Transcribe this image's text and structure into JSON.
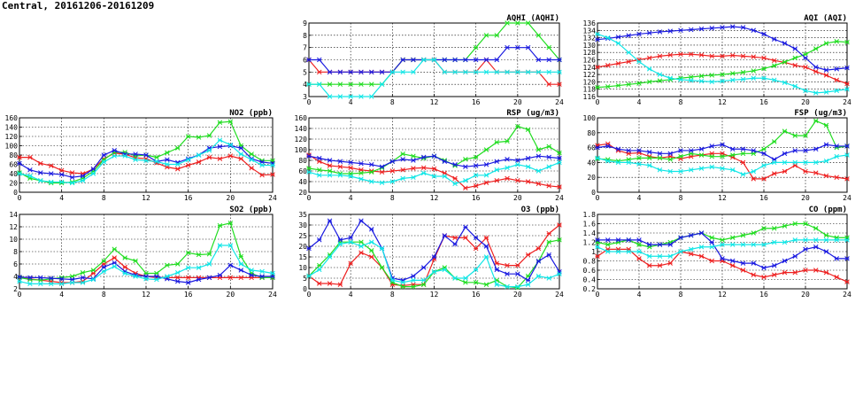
{
  "page_title": "Central, 20161206-20161209",
  "colors": {
    "red": "#ee2020",
    "green": "#20dd20",
    "blue": "#1a1ae0",
    "cyan": "#10e6e6"
  },
  "chart_data": [
    {
      "id": "aqhi",
      "type": "line",
      "title": "AQHI (AQHI)",
      "xlim": [
        0,
        24
      ],
      "ylim": [
        3,
        9
      ],
      "xticks": [
        0,
        4,
        8,
        12,
        16,
        20,
        24
      ],
      "yticks": [
        3,
        4,
        5,
        6,
        7,
        8,
        9
      ],
      "grid": true,
      "series": [
        {
          "color": "red",
          "values": [
            6,
            5,
            5,
            5,
            5,
            5,
            5,
            5,
            5,
            6,
            6,
            6,
            6,
            5,
            5,
            5,
            5,
            6,
            5,
            5,
            5,
            5,
            5,
            4,
            4
          ]
        },
        {
          "color": "green",
          "values": [
            4,
            4,
            4,
            4,
            4,
            4,
            4,
            4,
            5,
            6,
            6,
            6,
            6,
            6,
            6,
            6,
            7,
            8,
            8,
            9,
            9,
            9,
            8,
            7,
            6
          ]
        },
        {
          "color": "blue",
          "values": [
            6,
            6,
            5,
            5,
            5,
            5,
            5,
            5,
            5,
            6,
            6,
            6,
            6,
            6,
            6,
            6,
            6,
            6,
            6,
            7,
            7,
            7,
            6,
            6,
            6
          ]
        },
        {
          "color": "cyan",
          "values": [
            4,
            4,
            3,
            3,
            3,
            3,
            3,
            4,
            5,
            5,
            5,
            6,
            6,
            5,
            5,
            5,
            5,
            5,
            5,
            5,
            5,
            5,
            5,
            5,
            5
          ]
        }
      ]
    },
    {
      "id": "aqi",
      "type": "line",
      "title": "AQI (AQI)",
      "xlim": [
        0,
        24
      ],
      "ylim": [
        116,
        136
      ],
      "xticks": [
        0,
        4,
        8,
        12,
        16,
        20,
        24
      ],
      "yticks": [
        116,
        118,
        120,
        122,
        124,
        126,
        128,
        130,
        132,
        134,
        136
      ],
      "grid": true,
      "series": [
        {
          "color": "red",
          "values": [
            124,
            124.5,
            125,
            125.5,
            126,
            126.5,
            127,
            127.3,
            127.5,
            127.5,
            127.3,
            127,
            127,
            127.2,
            127,
            126.8,
            126.5,
            125.8,
            125.3,
            124.5,
            124,
            122.8,
            121.8,
            120.5,
            119.5
          ]
        },
        {
          "color": "green",
          "values": [
            118.5,
            118.7,
            119,
            119.3,
            119.6,
            120,
            120.3,
            120.6,
            121,
            121.3,
            121.6,
            121.8,
            122,
            122.3,
            122.6,
            123,
            123.6,
            124.4,
            125.4,
            126.5,
            127.5,
            129,
            130.5,
            131,
            130.8
          ]
        },
        {
          "color": "blue",
          "values": [
            131.5,
            131.8,
            132.2,
            132.6,
            133,
            133.3,
            133.6,
            133.8,
            134,
            134.2,
            134.4,
            134.6,
            134.8,
            135,
            134.8,
            134,
            133,
            131.6,
            130.5,
            129,
            126.5,
            124,
            123.2,
            123.5,
            123.8
          ]
        },
        {
          "color": "cyan",
          "values": [
            133,
            132,
            130.5,
            128,
            125.5,
            123.5,
            122,
            121,
            120.6,
            120.4,
            120.2,
            120,
            120.2,
            120.5,
            120.7,
            121,
            121,
            120.5,
            119.8,
            118.8,
            117.6,
            117,
            117.2,
            117.6,
            118
          ]
        }
      ]
    },
    {
      "id": "no2",
      "type": "line",
      "title": "NO2 (ppb)",
      "xlim": [
        0,
        24
      ],
      "ylim": [
        0,
        160
      ],
      "xticks": [
        0,
        4,
        8,
        12,
        16,
        20,
        24
      ],
      "yticks": [
        0,
        20,
        40,
        60,
        80,
        100,
        120,
        140,
        160
      ],
      "grid": true,
      "series": [
        {
          "color": "red",
          "values": [
            75,
            75,
            62,
            57,
            47,
            42,
            40,
            50,
            72,
            84,
            82,
            74,
            72,
            63,
            54,
            50,
            58,
            65,
            75,
            72,
            78,
            72,
            52,
            37,
            38
          ]
        },
        {
          "color": "green",
          "values": [
            42,
            30,
            25,
            20,
            20,
            22,
            30,
            45,
            70,
            86,
            86,
            78,
            80,
            75,
            85,
            95,
            120,
            118,
            122,
            150,
            152,
            100,
            82,
            68,
            68
          ]
        },
        {
          "color": "blue",
          "values": [
            62,
            48,
            42,
            40,
            38,
            32,
            35,
            50,
            80,
            90,
            82,
            82,
            80,
            66,
            70,
            64,
            72,
            80,
            95,
            98,
            100,
            95,
            72,
            65,
            62
          ]
        },
        {
          "color": "cyan",
          "values": [
            40,
            35,
            25,
            22,
            22,
            20,
            25,
            40,
            65,
            78,
            78,
            70,
            68,
            66,
            60,
            60,
            70,
            80,
            90,
            112,
            102,
            82,
            70,
            58,
            58
          ]
        }
      ]
    },
    {
      "id": "rsp",
      "type": "line",
      "title": "RSP (ug/m3)",
      "xlim": [
        0,
        24
      ],
      "ylim": [
        20,
        160
      ],
      "xticks": [
        0,
        4,
        8,
        12,
        16,
        20,
        24
      ],
      "yticks": [
        20,
        40,
        60,
        80,
        100,
        120,
        140,
        160
      ],
      "grid": true,
      "series": [
        {
          "color": "red",
          "values": [
            90,
            78,
            70,
            68,
            66,
            62,
            60,
            58,
            60,
            62,
            65,
            66,
            64,
            56,
            46,
            28,
            32,
            38,
            42,
            46,
            42,
            40,
            36,
            32,
            30
          ]
        },
        {
          "color": "green",
          "values": [
            65,
            62,
            60,
            55,
            55,
            56,
            58,
            66,
            78,
            92,
            88,
            84,
            88,
            80,
            70,
            82,
            86,
            100,
            114,
            116,
            144,
            138,
            100,
            106,
            94
          ]
        },
        {
          "color": "blue",
          "values": [
            88,
            84,
            80,
            78,
            76,
            74,
            72,
            68,
            78,
            82,
            80,
            86,
            88,
            78,
            72,
            68,
            70,
            72,
            78,
            82,
            80,
            84,
            88,
            86,
            84
          ]
        },
        {
          "color": "cyan",
          "values": [
            58,
            52,
            52,
            52,
            50,
            45,
            40,
            38,
            40,
            46,
            48,
            56,
            50,
            50,
            36,
            42,
            52,
            52,
            62,
            66,
            72,
            68,
            60,
            68,
            76
          ]
        }
      ]
    },
    {
      "id": "fsp",
      "type": "line",
      "title": "FSP (ug/m3)",
      "xlim": [
        0,
        24
      ],
      "ylim": [
        0,
        100
      ],
      "xticks": [
        0,
        4,
        8,
        12,
        16,
        20,
        24
      ],
      "yticks": [
        0,
        20,
        40,
        60,
        80,
        100
      ],
      "grid": true,
      "series": [
        {
          "color": "red",
          "values": [
            63,
            65,
            56,
            52,
            53,
            48,
            46,
            48,
            45,
            48,
            50,
            52,
            52,
            47,
            40,
            18,
            18,
            25,
            28,
            36,
            28,
            26,
            22,
            20,
            18
          ]
        },
        {
          "color": "green",
          "values": [
            45,
            44,
            42,
            44,
            46,
            46,
            46,
            44,
            48,
            52,
            50,
            48,
            48,
            50,
            52,
            52,
            58,
            68,
            82,
            76,
            76,
            96,
            90,
            60,
            62
          ]
        },
        {
          "color": "blue",
          "values": [
            60,
            62,
            58,
            56,
            56,
            54,
            52,
            52,
            56,
            56,
            58,
            62,
            64,
            58,
            58,
            56,
            52,
            44,
            52,
            56,
            56,
            58,
            64,
            62,
            62
          ]
        },
        {
          "color": "cyan",
          "values": [
            46,
            42,
            40,
            40,
            38,
            36,
            30,
            28,
            28,
            30,
            32,
            34,
            32,
            30,
            24,
            28,
            36,
            40,
            40,
            40,
            40,
            40,
            42,
            48,
            50
          ]
        }
      ]
    },
    {
      "id": "so2",
      "type": "line",
      "title": "SO2 (ppb)",
      "xlim": [
        0,
        24
      ],
      "ylim": [
        2,
        14
      ],
      "xticks": [
        0,
        4,
        8,
        12,
        16,
        20,
        24
      ],
      "yticks": [
        2,
        4,
        6,
        8,
        10,
        12,
        14
      ],
      "grid": true,
      "series": [
        {
          "color": "red",
          "values": [
            3.8,
            3.6,
            3.4,
            3.2,
            3,
            3,
            3.2,
            4.5,
            6,
            7,
            5.5,
            4.5,
            4,
            3.8,
            3.8,
            3.8,
            3.8,
            3.8,
            3.8,
            3.8,
            3.8,
            3.8,
            3.8,
            3.8,
            3.8
          ]
        },
        {
          "color": "green",
          "values": [
            3.8,
            3.5,
            3.4,
            3.6,
            3.8,
            4,
            4.6,
            5,
            6.5,
            8.4,
            7,
            6.5,
            4.5,
            4.5,
            5.8,
            6,
            7.8,
            7.5,
            7.6,
            12.2,
            12.6,
            7.2,
            4.5,
            3.8,
            3.8
          ]
        },
        {
          "color": "blue",
          "values": [
            3.9,
            3.8,
            3.8,
            3.7,
            3.6,
            3.5,
            3.8,
            3.6,
            5.5,
            6.2,
            4.8,
            4.2,
            4,
            4,
            3.6,
            3.2,
            3,
            3.5,
            3.8,
            4.2,
            5.8,
            5,
            4.2,
            4,
            4
          ]
        },
        {
          "color": "cyan",
          "values": [
            3.2,
            2.8,
            2.8,
            2.8,
            2.8,
            3,
            3,
            3.5,
            4.8,
            5.6,
            4.5,
            4,
            3.6,
            3.5,
            4,
            4.6,
            5.4,
            5.4,
            6,
            9,
            9,
            6,
            5,
            4.8,
            4.5
          ]
        }
      ]
    },
    {
      "id": "o3",
      "type": "line",
      "title": "O3 (ppb)",
      "xlim": [
        0,
        24
      ],
      "ylim": [
        0,
        35
      ],
      "xticks": [
        0,
        4,
        8,
        12,
        16,
        20,
        24
      ],
      "yticks": [
        0,
        5,
        10,
        15,
        20,
        25,
        30,
        35
      ],
      "grid": true,
      "series": [
        {
          "color": "red",
          "values": [
            6,
            2.5,
            2.5,
            2,
            12,
            17,
            15,
            10,
            2,
            1.5,
            2,
            2,
            14,
            25,
            24,
            24,
            19,
            24,
            12,
            11,
            11,
            16,
            19,
            26,
            30
          ]
        },
        {
          "color": "green",
          "values": [
            6,
            11,
            16,
            22,
            22,
            22,
            18,
            10,
            3,
            1,
            1,
            2,
            8,
            10,
            5,
            3,
            3,
            2,
            4,
            1,
            0.5,
            6,
            13,
            22,
            23
          ]
        },
        {
          "color": "blue",
          "values": [
            19,
            23,
            32,
            23,
            24,
            32,
            28,
            19,
            5,
            4,
            6,
            10,
            15,
            25,
            21,
            29,
            24,
            20,
            9,
            7,
            7,
            4,
            13,
            16,
            8
          ]
        },
        {
          "color": "cyan",
          "values": [
            6,
            9,
            15,
            21,
            22,
            20,
            22,
            19,
            4,
            3,
            4,
            4,
            8,
            9,
            5,
            5,
            9,
            15,
            2,
            1,
            1,
            2,
            6,
            5,
            7
          ]
        }
      ]
    },
    {
      "id": "co",
      "type": "line",
      "title": "CO (ppm)",
      "xlim": [
        0,
        24
      ],
      "ylim": [
        0.2,
        1.8
      ],
      "xticks": [
        0,
        4,
        8,
        12,
        16,
        20,
        24
      ],
      "yticks": [
        0.2,
        0.4,
        0.6,
        0.8,
        1.0,
        1.2,
        1.4,
        1.6,
        1.8
      ],
      "grid": true,
      "series": [
        {
          "color": "red",
          "values": [
            0.9,
            1.05,
            1.05,
            1.05,
            0.85,
            0.7,
            0.7,
            0.75,
            1.0,
            0.95,
            0.9,
            0.8,
            0.8,
            0.7,
            0.6,
            0.5,
            0.45,
            0.5,
            0.55,
            0.55,
            0.6,
            0.6,
            0.55,
            0.45,
            0.35
          ]
        },
        {
          "color": "green",
          "values": [
            1.2,
            1.15,
            1.2,
            1.25,
            1.15,
            1.1,
            1.15,
            1.2,
            1.3,
            1.35,
            1.4,
            1.3,
            1.25,
            1.3,
            1.35,
            1.4,
            1.5,
            1.5,
            1.55,
            1.6,
            1.6,
            1.5,
            1.35,
            1.3,
            1.3
          ]
        },
        {
          "color": "blue",
          "values": [
            1.25,
            1.25,
            1.25,
            1.25,
            1.25,
            1.15,
            1.15,
            1.15,
            1.3,
            1.35,
            1.4,
            1.2,
            0.85,
            0.8,
            0.75,
            0.75,
            0.65,
            0.7,
            0.8,
            0.9,
            1.05,
            1.1,
            1.0,
            0.85,
            0.85
          ]
        },
        {
          "color": "cyan",
          "values": [
            1.1,
            1.0,
            1.0,
            1.0,
            1.0,
            0.9,
            0.9,
            0.9,
            1.0,
            1.05,
            1.1,
            1.1,
            1.15,
            1.15,
            1.15,
            1.15,
            1.15,
            1.2,
            1.2,
            1.25,
            1.25,
            1.25,
            1.25,
            1.25,
            1.25
          ]
        }
      ]
    }
  ]
}
